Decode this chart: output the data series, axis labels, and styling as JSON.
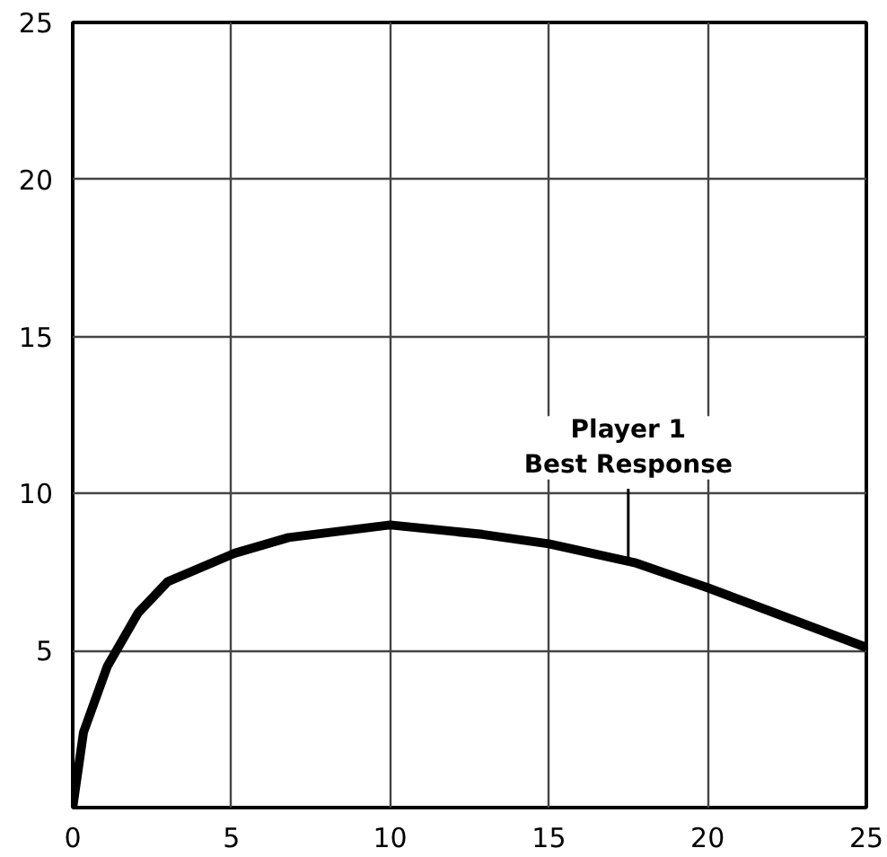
{
  "chart_data": {
    "type": "line",
    "x": [
      0,
      0.34,
      1.09,
      2.06,
      3.0,
      5.1,
      6.8,
      10.0,
      12.9,
      15.0,
      17.7,
      20.0,
      25
    ],
    "series": [
      {
        "color": "#000000",
        "values": [
          0,
          2.4,
          4.5,
          6.2,
          7.2,
          8.1,
          8.6,
          9.0,
          8.7,
          8.4,
          7.8,
          7.0,
          5.1
        ]
      }
    ],
    "xlim": [
      0,
      25
    ],
    "ylim": [
      0,
      25
    ],
    "xticks": [
      0,
      5,
      10,
      15,
      20,
      25
    ],
    "yticks": [
      {
        "value": 0,
        "label": null
      },
      5,
      10,
      15,
      20,
      25
    ],
    "grid": true,
    "marker": "none",
    "line_style": "solid",
    "annotations": [
      {
        "text": "Player 1\nBest Response",
        "x": 17.5,
        "y": 7.85
      }
    ]
  }
}
